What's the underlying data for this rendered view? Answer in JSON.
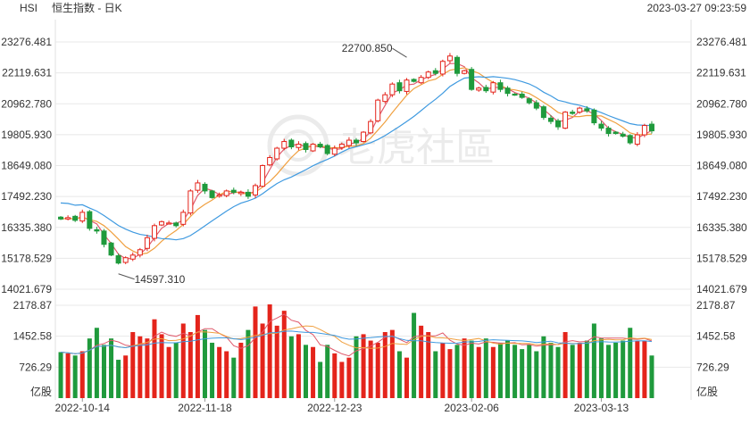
{
  "header": {
    "symbol": "HSI",
    "name": "恒生指数 - 日K",
    "timestamp": "2023-03-27 09:23:59"
  },
  "watermark": "老虎社區",
  "colors": {
    "up": "#e4241b",
    "down": "#1f9a3c",
    "ma_short": "#e05a6c",
    "ma_mid": "#f0a040",
    "ma_long": "#3f9ae0",
    "grid": "#e8e8e8",
    "label": "#333333"
  },
  "chart_data": {
    "type": "candlestick",
    "price_axis": {
      "ticks": [
        "23276.481",
        "22119.631",
        "20962.780",
        "19805.930",
        "18649.080",
        "17492.230",
        "16335.380",
        "15178.529",
        "14021.679"
      ],
      "range": [
        14021.679,
        23276.481
      ]
    },
    "volume_axis": {
      "ticks": [
        "2178.87",
        "1452.58",
        "726.29"
      ],
      "unit": "亿股",
      "range": [
        0,
        2178.87
      ]
    },
    "x_ticks": [
      "2022-10-14",
      "2022-11-18",
      "2022-12-23",
      "2023-02-06",
      "2023-03-13"
    ],
    "annotations": [
      {
        "text": "22700.850",
        "value": 22700.85,
        "index": 48
      },
      {
        "text": "14597.310",
        "value": 14597.31,
        "index": 8
      }
    ],
    "close": [
      16650,
      16700,
      16600,
      16900,
      16300,
      16200,
      15700,
      15300,
      15000,
      15200,
      15300,
      15500,
      15950,
      16400,
      16550,
      16500,
      16400,
      16900,
      17700,
      18000,
      17700,
      17450,
      17550,
      17700,
      17650,
      17650,
      17500,
      17900,
      18650,
      18950,
      19300,
      19550,
      19350,
      19450,
      19250,
      19450,
      19350,
      19100,
      19300,
      19450,
      19600,
      19500,
      19900,
      20300,
      21100,
      21300,
      21700,
      21450,
      21850,
      21800,
      21950,
      22150,
      22100,
      22550,
      22750,
      22100,
      22200,
      21500,
      21550,
      21450,
      21750,
      21500,
      21350,
      21300,
      21200,
      21000,
      20800,
      20450,
      20300,
      20100,
      20650,
      20600,
      20800,
      20700,
      20250,
      20050,
      19850,
      19850,
      19750,
      19500,
      19800,
      20150,
      19950
    ]
  },
  "volume_data": [
    1080,
    1050,
    1000,
    1100,
    1400,
    1650,
    1250,
    1400,
    900,
    1000,
    1550,
    1450,
    1400,
    1850,
    1500,
    1200,
    1300,
    1750,
    1550,
    1950,
    1600,
    1300,
    1200,
    1100,
    950,
    1300,
    1600,
    2150,
    1750,
    2200,
    1700,
    2050,
    1450,
    1500,
    1250,
    1200,
    850,
    1250,
    1050,
    850,
    950,
    1450,
    1500,
    1350,
    1300,
    1550,
    1600,
    1100,
    950,
    2000,
    1700,
    1550,
    1100,
    1300,
    1150,
    1250,
    1400,
    1350,
    1200,
    1400,
    1200,
    1300,
    1350,
    1250,
    1150,
    1250,
    1100,
    1450,
    1300,
    1200,
    1550,
    1250,
    1300,
    1350,
    1750,
    1400,
    1250,
    1300,
    1350,
    1650,
    1350,
    1350,
    1000
  ]
}
